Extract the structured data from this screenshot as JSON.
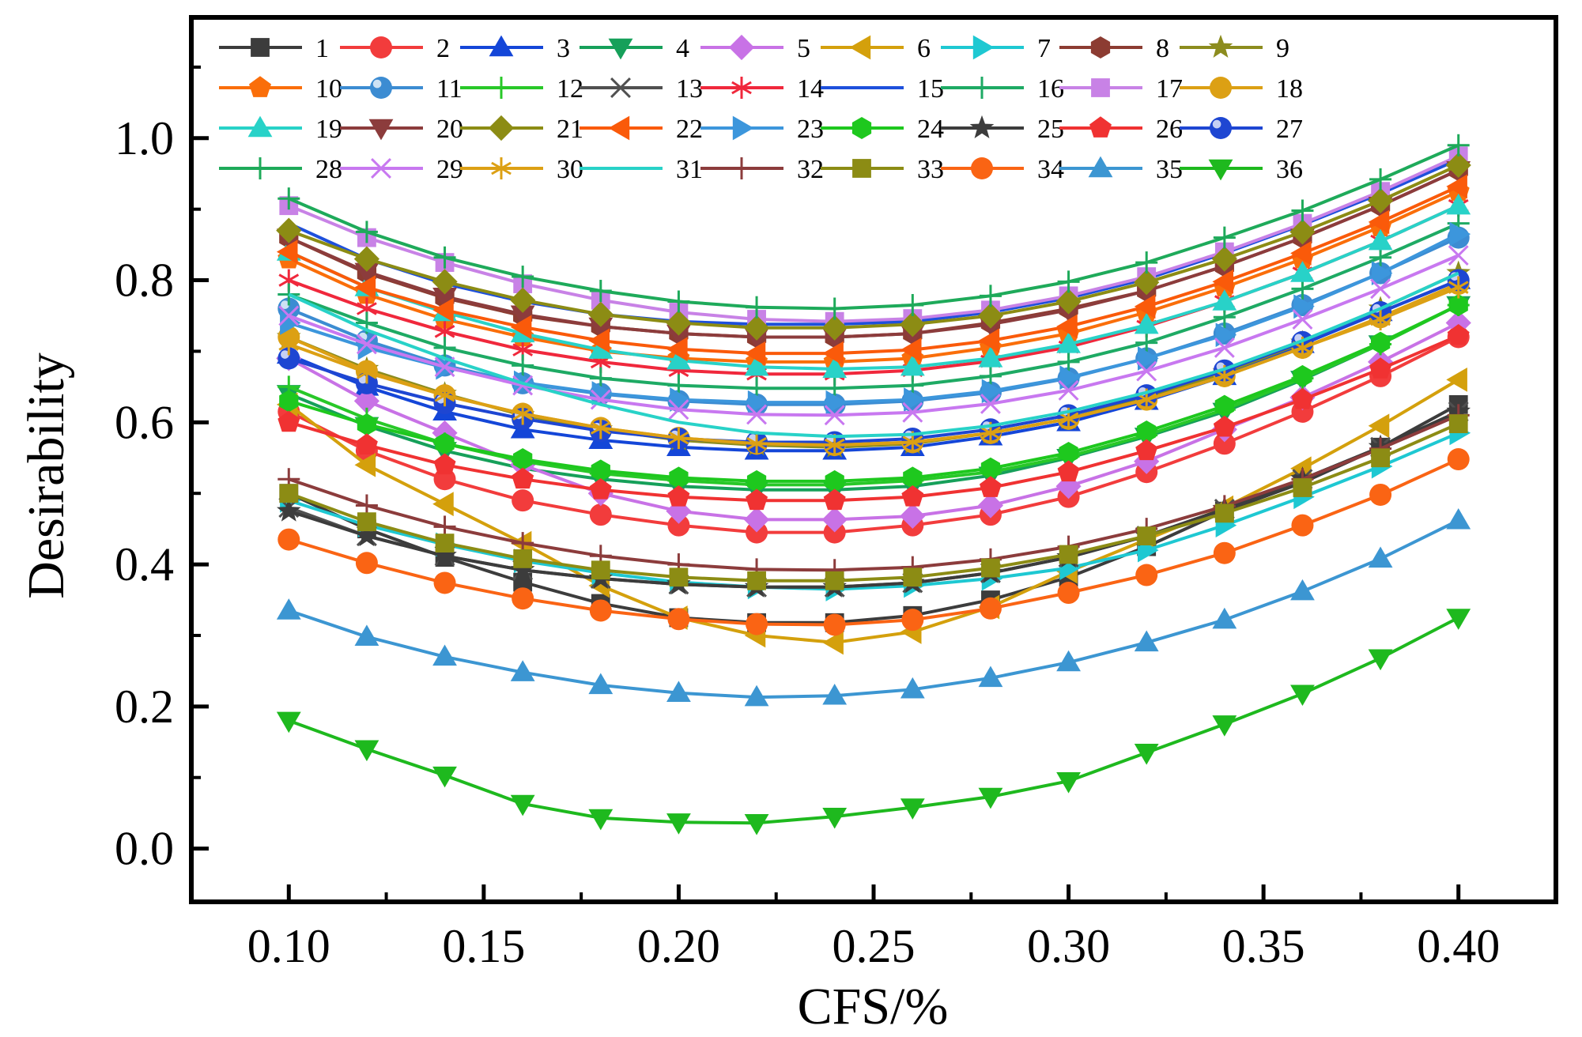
{
  "chart_data": {
    "type": "line",
    "xlabel": "CFS/%",
    "ylabel": "Desirability",
    "xlim": [
      0.075,
      0.425
    ],
    "ylim": [
      -0.075,
      1.17
    ],
    "x": [
      0.1,
      0.12,
      0.14,
      0.16,
      0.18,
      0.2,
      0.22,
      0.24,
      0.26,
      0.28,
      0.3,
      0.32,
      0.34,
      0.36,
      0.38,
      0.4
    ],
    "x_ticks": [
      0.1,
      0.15,
      0.2,
      0.25,
      0.3,
      0.35,
      0.4
    ],
    "x_tick_labels": [
      "0.10",
      "0.15",
      "0.20",
      "0.25",
      "0.30",
      "0.35",
      "0.40"
    ],
    "y_ticks": [
      0.0,
      0.2,
      0.4,
      0.6,
      0.8,
      1.0
    ],
    "y_tick_labels": [
      "0.0",
      "0.2",
      "0.4",
      "0.6",
      "0.8",
      "1.0"
    ],
    "grid": false,
    "legend_position": "top",
    "series": [
      {
        "name": "1",
        "color": "#3c3c3c",
        "marker": "square",
        "values": [
          0.5,
          0.45,
          0.41,
          0.375,
          0.345,
          0.325,
          0.318,
          0.318,
          0.328,
          0.35,
          0.382,
          0.425,
          0.475,
          0.515,
          0.565,
          0.625
        ]
      },
      {
        "name": "2",
        "color": "#f23c3c",
        "marker": "circle",
        "values": [
          0.615,
          0.56,
          0.52,
          0.49,
          0.47,
          0.455,
          0.445,
          0.445,
          0.455,
          0.47,
          0.495,
          0.53,
          0.57,
          0.615,
          0.665,
          0.72
        ]
      },
      {
        "name": "3",
        "color": "#1446d8",
        "marker": "triangle",
        "values": [
          0.695,
          0.65,
          0.615,
          0.59,
          0.575,
          0.565,
          0.56,
          0.56,
          0.565,
          0.58,
          0.6,
          0.63,
          0.665,
          0.71,
          0.755,
          0.8
        ]
      },
      {
        "name": "4",
        "color": "#16a05a",
        "marker": "triangle-down",
        "values": [
          0.64,
          0.595,
          0.56,
          0.535,
          0.52,
          0.51,
          0.505,
          0.505,
          0.51,
          0.525,
          0.55,
          0.58,
          0.615,
          0.66,
          0.71,
          0.765
        ]
      },
      {
        "name": "5",
        "color": "#c872e6",
        "marker": "diamond",
        "values": [
          0.69,
          0.63,
          0.585,
          0.54,
          0.5,
          0.475,
          0.463,
          0.463,
          0.468,
          0.483,
          0.51,
          0.545,
          0.59,
          0.635,
          0.685,
          0.74
        ]
      },
      {
        "name": "6",
        "color": "#d4a00c",
        "marker": "triangle-left",
        "values": [
          0.625,
          0.54,
          0.485,
          0.43,
          0.37,
          0.325,
          0.3,
          0.29,
          0.305,
          0.34,
          0.39,
          0.435,
          0.48,
          0.535,
          0.595,
          0.66
        ]
      },
      {
        "name": "7",
        "color": "#1ec8d2",
        "marker": "triangle-right",
        "values": [
          0.49,
          0.455,
          0.428,
          0.405,
          0.388,
          0.375,
          0.368,
          0.365,
          0.37,
          0.38,
          0.395,
          0.42,
          0.455,
          0.495,
          0.538,
          0.585
        ]
      },
      {
        "name": "8",
        "color": "#8c3c32",
        "marker": "hexagon",
        "values": [
          0.86,
          0.81,
          0.775,
          0.75,
          0.735,
          0.725,
          0.72,
          0.72,
          0.725,
          0.74,
          0.76,
          0.785,
          0.82,
          0.86,
          0.905,
          0.955
        ]
      },
      {
        "name": "9",
        "color": "#8c8c1e",
        "marker": "star",
        "values": [
          0.72,
          0.675,
          0.64,
          0.61,
          0.59,
          0.575,
          0.568,
          0.565,
          0.57,
          0.585,
          0.605,
          0.635,
          0.67,
          0.712,
          0.76,
          0.81
        ]
      },
      {
        "name": "10",
        "color": "#fa6e0a",
        "marker": "pentagon",
        "values": [
          0.83,
          0.78,
          0.745,
          0.72,
          0.7,
          0.69,
          0.685,
          0.685,
          0.69,
          0.705,
          0.725,
          0.755,
          0.79,
          0.83,
          0.875,
          0.925
        ]
      },
      {
        "name": "11",
        "color": "#3c8cd2",
        "marker": "sphere",
        "values": [
          0.76,
          0.715,
          0.68,
          0.655,
          0.64,
          0.63,
          0.625,
          0.625,
          0.63,
          0.642,
          0.662,
          0.69,
          0.725,
          0.765,
          0.81,
          0.86
        ]
      },
      {
        "name": "12",
        "color": "#28c828",
        "marker": "plus",
        "values": [
          0.65,
          0.605,
          0.57,
          0.545,
          0.528,
          0.518,
          0.512,
          0.512,
          0.518,
          0.53,
          0.552,
          0.582,
          0.618,
          0.662,
          0.71,
          0.765
        ]
      },
      {
        "name": "13",
        "color": "#505050",
        "marker": "cross",
        "values": [
          0.48,
          0.44,
          0.412,
          0.392,
          0.38,
          0.372,
          0.368,
          0.368,
          0.374,
          0.388,
          0.41,
          0.44,
          0.478,
          0.52,
          0.565,
          0.615
        ]
      },
      {
        "name": "14",
        "color": "#f0283c",
        "marker": "asterisk",
        "values": [
          0.8,
          0.76,
          0.728,
          0.702,
          0.685,
          0.673,
          0.668,
          0.668,
          0.673,
          0.686,
          0.706,
          0.735,
          0.77,
          0.81,
          0.855,
          0.905
        ]
      },
      {
        "name": "15",
        "color": "#1e50dc",
        "marker": "none",
        "values": [
          0.88,
          0.83,
          0.795,
          0.77,
          0.752,
          0.742,
          0.738,
          0.738,
          0.742,
          0.755,
          0.775,
          0.802,
          0.838,
          0.878,
          0.922,
          0.97
        ]
      },
      {
        "name": "16",
        "color": "#1eaa64",
        "marker": "plus",
        "values": [
          0.78,
          0.74,
          0.705,
          0.68,
          0.662,
          0.652,
          0.648,
          0.648,
          0.652,
          0.665,
          0.685,
          0.712,
          0.748,
          0.788,
          0.832,
          0.88
        ]
      },
      {
        "name": "17",
        "color": "#c882e6",
        "marker": "square",
        "values": [
          0.905,
          0.86,
          0.825,
          0.795,
          0.772,
          0.755,
          0.745,
          0.742,
          0.746,
          0.758,
          0.778,
          0.805,
          0.84,
          0.88,
          0.925,
          0.975
        ]
      },
      {
        "name": "18",
        "color": "#dca014",
        "marker": "circle",
        "values": [
          0.72,
          0.672,
          0.638,
          0.612,
          0.592,
          0.578,
          0.57,
          0.568,
          0.572,
          0.585,
          0.605,
          0.632,
          0.665,
          0.705,
          0.748,
          0.795
        ]
      },
      {
        "name": "19",
        "color": "#28d2c8",
        "marker": "triangle",
        "values": [
          0.84,
          0.79,
          0.755,
          0.725,
          0.702,
          0.687,
          0.678,
          0.675,
          0.678,
          0.69,
          0.71,
          0.737,
          0.77,
          0.81,
          0.855,
          0.905
        ]
      },
      {
        "name": "20",
        "color": "#8c3c3c",
        "marker": "triangle-down",
        "values": [
          0.86,
          0.812,
          0.777,
          0.752,
          0.735,
          0.725,
          0.72,
          0.72,
          0.725,
          0.738,
          0.758,
          0.785,
          0.82,
          0.86,
          0.905,
          0.955
        ]
      },
      {
        "name": "21",
        "color": "#8c8c14",
        "marker": "diamond",
        "values": [
          0.87,
          0.83,
          0.798,
          0.772,
          0.752,
          0.74,
          0.733,
          0.733,
          0.738,
          0.75,
          0.77,
          0.797,
          0.83,
          0.868,
          0.912,
          0.962
        ]
      },
      {
        "name": "22",
        "color": "#fa5a0a",
        "marker": "triangle-left",
        "values": [
          0.84,
          0.79,
          0.758,
          0.734,
          0.715,
          0.703,
          0.697,
          0.697,
          0.702,
          0.715,
          0.735,
          0.763,
          0.798,
          0.838,
          0.882,
          0.932
        ]
      },
      {
        "name": "23",
        "color": "#3c96dc",
        "marker": "triangle-right",
        "values": [
          0.74,
          0.705,
          0.677,
          0.656,
          0.641,
          0.632,
          0.628,
          0.628,
          0.632,
          0.644,
          0.663,
          0.69,
          0.723,
          0.763,
          0.81,
          0.865
        ]
      },
      {
        "name": "24",
        "color": "#1ec81e",
        "marker": "hexagon",
        "values": [
          0.63,
          0.597,
          0.57,
          0.548,
          0.532,
          0.522,
          0.517,
          0.517,
          0.522,
          0.535,
          0.557,
          0.587,
          0.623,
          0.665,
          0.712,
          0.765
        ]
      },
      {
        "name": "25",
        "color": "#3c3c3c",
        "marker": "star",
        "values": [
          0.475,
          0.44,
          0.412,
          0.392,
          0.38,
          0.372,
          0.368,
          0.368,
          0.374,
          0.388,
          0.41,
          0.44,
          0.478,
          0.52,
          0.565,
          0.615
        ]
      },
      {
        "name": "26",
        "color": "#f03232",
        "marker": "pentagon",
        "values": [
          0.6,
          0.568,
          0.54,
          0.52,
          0.505,
          0.495,
          0.49,
          0.49,
          0.495,
          0.508,
          0.53,
          0.56,
          0.593,
          0.632,
          0.675,
          0.722
        ]
      },
      {
        "name": "27",
        "color": "#1e46d2",
        "marker": "sphere",
        "values": [
          0.69,
          0.655,
          0.627,
          0.605,
          0.588,
          0.577,
          0.572,
          0.572,
          0.577,
          0.59,
          0.61,
          0.638,
          0.673,
          0.713,
          0.755,
          0.8
        ]
      },
      {
        "name": "28",
        "color": "#1eaa5a",
        "marker": "plus",
        "values": [
          0.915,
          0.868,
          0.832,
          0.805,
          0.785,
          0.77,
          0.762,
          0.76,
          0.765,
          0.778,
          0.798,
          0.825,
          0.86,
          0.898,
          0.942,
          0.99
        ]
      },
      {
        "name": "29",
        "color": "#c878f0",
        "marker": "cross",
        "values": [
          0.75,
          0.71,
          0.678,
          0.652,
          0.632,
          0.618,
          0.611,
          0.61,
          0.614,
          0.626,
          0.645,
          0.672,
          0.705,
          0.745,
          0.788,
          0.835
        ]
      },
      {
        "name": "30",
        "color": "#dca014",
        "marker": "asterisk",
        "values": [
          0.71,
          0.67,
          0.638,
          0.612,
          0.592,
          0.578,
          0.57,
          0.568,
          0.572,
          0.585,
          0.605,
          0.632,
          0.665,
          0.705,
          0.745,
          0.79
        ]
      },
      {
        "name": "31",
        "color": "#28d2c8",
        "marker": "none",
        "values": [
          0.78,
          0.73,
          0.69,
          0.655,
          0.625,
          0.6,
          0.585,
          0.58,
          0.583,
          0.595,
          0.615,
          0.642,
          0.675,
          0.715,
          0.76,
          0.81
        ]
      },
      {
        "name": "32",
        "color": "#8c3c3c",
        "marker": "plus",
        "values": [
          0.52,
          0.483,
          0.453,
          0.43,
          0.412,
          0.4,
          0.393,
          0.392,
          0.396,
          0.407,
          0.425,
          0.45,
          0.482,
          0.52,
          0.563,
          0.61
        ]
      },
      {
        "name": "33",
        "color": "#8c8c14",
        "marker": "square",
        "values": [
          0.5,
          0.46,
          0.43,
          0.408,
          0.392,
          0.382,
          0.377,
          0.377,
          0.382,
          0.395,
          0.414,
          0.44,
          0.472,
          0.508,
          0.55,
          0.598
        ]
      },
      {
        "name": "34",
        "color": "#fa6414",
        "marker": "circle",
        "values": [
          0.435,
          0.402,
          0.374,
          0.352,
          0.335,
          0.323,
          0.316,
          0.315,
          0.322,
          0.338,
          0.36,
          0.385,
          0.416,
          0.455,
          0.498,
          0.548
        ]
      },
      {
        "name": "35",
        "color": "#3c96d2",
        "marker": "triangle",
        "values": [
          0.335,
          0.298,
          0.27,
          0.248,
          0.23,
          0.219,
          0.213,
          0.215,
          0.224,
          0.24,
          0.262,
          0.29,
          0.322,
          0.362,
          0.408,
          0.462
        ]
      },
      {
        "name": "36",
        "color": "#1eb91e",
        "marker": "triangle-down",
        "values": [
          0.18,
          0.14,
          0.103,
          0.063,
          0.043,
          0.037,
          0.036,
          0.045,
          0.058,
          0.073,
          0.095,
          0.135,
          0.175,
          0.218,
          0.268,
          0.325
        ]
      }
    ]
  }
}
